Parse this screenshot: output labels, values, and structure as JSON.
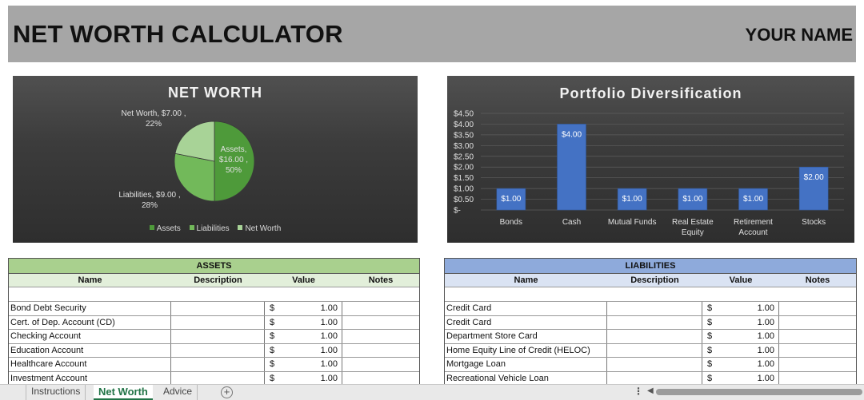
{
  "header": {
    "title": "NET WORTH CALCULATOR",
    "user_name": "YOUR NAME"
  },
  "colors": {
    "header_bg": "#a6a6a6",
    "assets_banner": "#a9d08e",
    "assets_colhead": "#e2efda",
    "liabilities_banner": "#8eaadb",
    "liabilities_colhead": "#dae3f3",
    "pie_assets": "#4e9a3a",
    "pie_liabilities": "#72b95a",
    "pie_networth": "#a8d397",
    "bar": "#4472c4",
    "active_tab": "#217346"
  },
  "chart_data": [
    {
      "type": "pie",
      "title": "NET WORTH",
      "slices": [
        {
          "name": "Assets",
          "value": 16.0,
          "value_label": "$16.00",
          "percent_label": "50%"
        },
        {
          "name": "Liabilities",
          "value": 9.0,
          "value_label": "$9.00",
          "percent_label": "28%"
        },
        {
          "name": "Net Worth",
          "value": 7.0,
          "value_label": "$7.00",
          "percent_label": "22%"
        }
      ],
      "legend": [
        "Assets",
        "Liabilities",
        "Net Worth"
      ],
      "legend_position": "bottom"
    },
    {
      "type": "bar",
      "title": "Portfolio Diversification",
      "categories": [
        [
          "Bonds"
        ],
        [
          "Cash"
        ],
        [
          "Mutual Funds"
        ],
        [
          "Real Estate",
          "Equity"
        ],
        [
          "Retirement",
          "Account"
        ],
        [
          "Stocks"
        ]
      ],
      "values": [
        1.0,
        4.0,
        1.0,
        1.0,
        1.0,
        2.0
      ],
      "data_labels": [
        "$1.00",
        "$4.00",
        "$1.00",
        "$1.00",
        "$1.00",
        "$2.00"
      ],
      "ylim": [
        0,
        4.5
      ],
      "y_ticks": [
        4.5,
        4.0,
        3.5,
        3.0,
        2.5,
        2.0,
        1.5,
        1.0,
        0.5,
        0
      ],
      "y_tick_labels": [
        "$4.50",
        "$4.00",
        "$3.50",
        "$3.00",
        "$2.50",
        "$2.00",
        "$1.50",
        "$1.00",
        "$0.50",
        "$-"
      ],
      "grid": true
    }
  ],
  "assets": {
    "banner": "ASSETS",
    "columns": [
      "Name",
      "Description",
      "Value",
      "Notes"
    ],
    "rows": [
      {
        "name": "Bond Debt Security",
        "description": "",
        "currency": "$",
        "value": "1.00",
        "notes": ""
      },
      {
        "name": "Cert. of Dep. Account (CD)",
        "description": "",
        "currency": "$",
        "value": "1.00",
        "notes": ""
      },
      {
        "name": "Checking Account",
        "description": "",
        "currency": "$",
        "value": "1.00",
        "notes": ""
      },
      {
        "name": "Education Account",
        "description": "",
        "currency": "$",
        "value": "1.00",
        "notes": ""
      },
      {
        "name": "Healthcare Account",
        "description": "",
        "currency": "$",
        "value": "1.00",
        "notes": ""
      },
      {
        "name": "Investment Account",
        "description": "",
        "currency": "$",
        "value": "1.00",
        "notes": ""
      }
    ]
  },
  "liabilities": {
    "banner": "LIABILITIES",
    "columns": [
      "Name",
      "Description",
      "Value",
      "Notes"
    ],
    "rows": [
      {
        "name": "Credit Card",
        "description": "",
        "currency": "$",
        "value": "1.00",
        "notes": ""
      },
      {
        "name": "Credit Card",
        "description": "",
        "currency": "$",
        "value": "1.00",
        "notes": ""
      },
      {
        "name": "Department Store Card",
        "description": "",
        "currency": "$",
        "value": "1.00",
        "notes": ""
      },
      {
        "name": "Home Equity Line of Credit (HELOC)",
        "description": "",
        "currency": "$",
        "value": "1.00",
        "notes": ""
      },
      {
        "name": "Mortgage Loan",
        "description": "",
        "currency": "$",
        "value": "1.00",
        "notes": ""
      },
      {
        "name": "Recreational Vehicle Loan",
        "description": "",
        "currency": "$",
        "value": "1.00",
        "notes": ""
      }
    ]
  },
  "sheet_tabs": {
    "tabs": [
      "Instructions",
      "Net Worth",
      "Advice"
    ],
    "active": "Net Worth",
    "add_icon": "plus-circle-icon",
    "more_icon": "vertical-ellipsis-icon",
    "scroll_icon": "triangle-left-icon"
  }
}
